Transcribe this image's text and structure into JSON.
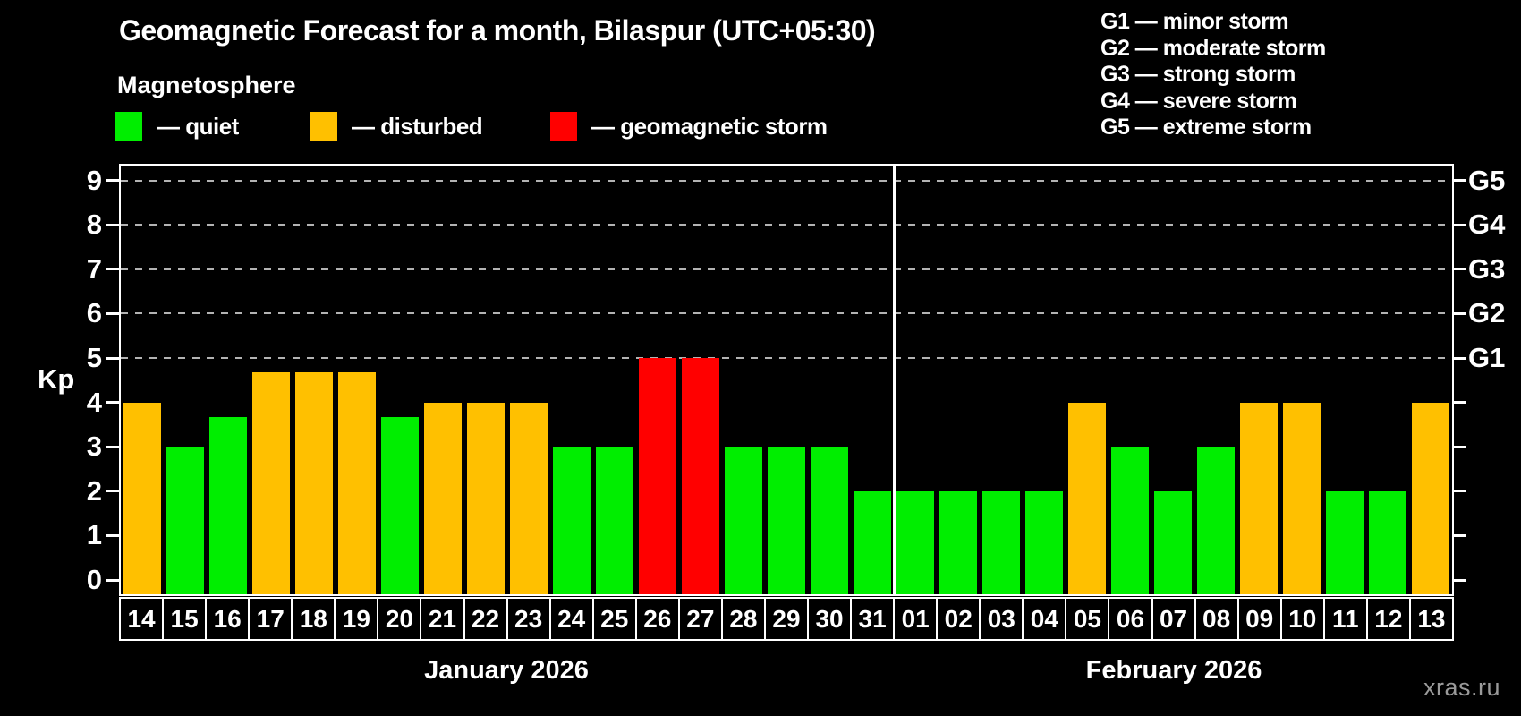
{
  "title": "Geomagnetic Forecast for a month, Bilaspur (UTC+05:30)",
  "subtitle": "Magnetosphere",
  "legend": {
    "items": [
      {
        "key": "quiet",
        "label": "— quiet",
        "color": "#00EE00"
      },
      {
        "key": "disturbed",
        "label": "— disturbed",
        "color": "#FFC000"
      },
      {
        "key": "storm",
        "label": "— geomagnetic storm",
        "color": "#FF0000"
      }
    ]
  },
  "storm_scale_legend": [
    "G1 — minor storm",
    "G2 — moderate storm",
    "G3 — strong storm",
    "G4 — severe storm",
    "G5 — extreme storm"
  ],
  "watermark": "xras.ru",
  "chart_data": {
    "type": "bar",
    "title": "Geomagnetic Forecast for a month, Bilaspur (UTC+05:30)",
    "ylabel": "Kp",
    "ylim": [
      0,
      9.6
    ],
    "yticks": [
      "0",
      "1",
      "2",
      "3",
      "4",
      "5",
      "6",
      "7",
      "8",
      "9"
    ],
    "gridlines_at": [
      5,
      6,
      7,
      8,
      9
    ],
    "grid": "dashed horizontal at Kp 5-9 only",
    "right_axis_labels": [
      {
        "kp": 9,
        "label": "G5"
      },
      {
        "kp": 8,
        "label": "G4"
      },
      {
        "kp": 7,
        "label": "G3"
      },
      {
        "kp": 6,
        "label": "G2"
      },
      {
        "kp": 5,
        "label": "G1"
      }
    ],
    "colors": {
      "quiet": "#00EE00",
      "disturbed": "#FFC000",
      "storm": "#FF0000"
    },
    "months": [
      {
        "label": "January 2026",
        "days_count": 18
      },
      {
        "label": "February 2026",
        "days_count": 13
      }
    ],
    "days": [
      {
        "day": "14",
        "kp": 4.0,
        "status": "disturbed"
      },
      {
        "day": "15",
        "kp": 3.0,
        "status": "quiet"
      },
      {
        "day": "16",
        "kp": 3.67,
        "status": "quiet"
      },
      {
        "day": "17",
        "kp": 4.67,
        "status": "disturbed"
      },
      {
        "day": "18",
        "kp": 4.67,
        "status": "disturbed"
      },
      {
        "day": "19",
        "kp": 4.67,
        "status": "disturbed"
      },
      {
        "day": "20",
        "kp": 3.67,
        "status": "quiet"
      },
      {
        "day": "21",
        "kp": 4.0,
        "status": "disturbed"
      },
      {
        "day": "22",
        "kp": 4.0,
        "status": "disturbed"
      },
      {
        "day": "23",
        "kp": 4.0,
        "status": "disturbed"
      },
      {
        "day": "24",
        "kp": 3.0,
        "status": "quiet"
      },
      {
        "day": "25",
        "kp": 3.0,
        "status": "quiet"
      },
      {
        "day": "26",
        "kp": 5.0,
        "status": "storm"
      },
      {
        "day": "27",
        "kp": 5.0,
        "status": "storm"
      },
      {
        "day": "28",
        "kp": 3.0,
        "status": "quiet"
      },
      {
        "day": "29",
        "kp": 3.0,
        "status": "quiet"
      },
      {
        "day": "30",
        "kp": 3.0,
        "status": "quiet"
      },
      {
        "day": "31",
        "kp": 2.0,
        "status": "quiet"
      },
      {
        "day": "01",
        "kp": 2.0,
        "status": "quiet"
      },
      {
        "day": "02",
        "kp": 2.0,
        "status": "quiet"
      },
      {
        "day": "03",
        "kp": 2.0,
        "status": "quiet"
      },
      {
        "day": "04",
        "kp": 2.0,
        "status": "quiet"
      },
      {
        "day": "05",
        "kp": 4.0,
        "status": "disturbed"
      },
      {
        "day": "06",
        "kp": 3.0,
        "status": "quiet"
      },
      {
        "day": "07",
        "kp": 2.0,
        "status": "quiet"
      },
      {
        "day": "08",
        "kp": 3.0,
        "status": "quiet"
      },
      {
        "day": "09",
        "kp": 4.0,
        "status": "disturbed"
      },
      {
        "day": "10",
        "kp": 4.0,
        "status": "disturbed"
      },
      {
        "day": "11",
        "kp": 2.0,
        "status": "quiet"
      },
      {
        "day": "12",
        "kp": 2.0,
        "status": "quiet"
      },
      {
        "day": "13",
        "kp": 4.0,
        "status": "disturbed"
      }
    ]
  }
}
